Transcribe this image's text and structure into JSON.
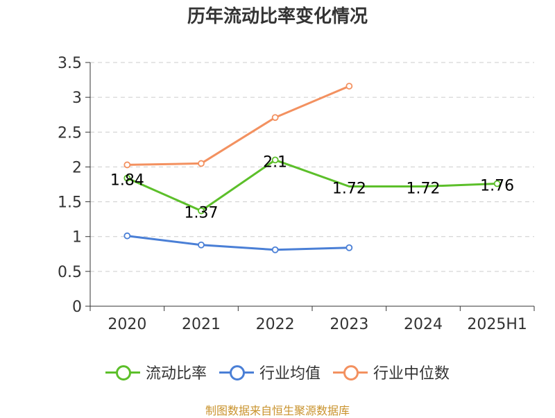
{
  "title": "历年流动比率变化情况",
  "source": "制图数据来自恒生聚源数据库",
  "colors": {
    "current_ratio": "#5cbf2a",
    "industry_avg": "#4a7fd6",
    "industry_median": "#f39160",
    "source_text": "#c9932d",
    "axis": "#333333",
    "grid": "#cccccc"
  },
  "chart_data": {
    "type": "line",
    "title": "历年流动比率变化情况",
    "categories": [
      "2020",
      "2021",
      "2022",
      "2023",
      "2024",
      "2025H1"
    ],
    "ylim": [
      0,
      3.5
    ],
    "yticks": [
      "0",
      "0.5",
      "1",
      "1.5",
      "2",
      "2.5",
      "3",
      "3.5"
    ],
    "grid": true,
    "legend_position": "bottom",
    "series": [
      {
        "name": "流动比率",
        "values": [
          1.84,
          1.37,
          2.1,
          1.72,
          1.72,
          1.76
        ],
        "labels": [
          "1.84",
          "1.37",
          "2.1",
          "1.72",
          "1.72",
          "1.76"
        ],
        "markers": [
          true,
          true,
          true,
          false,
          false,
          true
        ]
      },
      {
        "name": "行业均值",
        "values": [
          1.01,
          0.88,
          0.81,
          0.84,
          null,
          null
        ]
      },
      {
        "name": "行业中位数",
        "values": [
          2.03,
          2.05,
          2.71,
          3.16,
          null,
          null
        ]
      }
    ]
  }
}
